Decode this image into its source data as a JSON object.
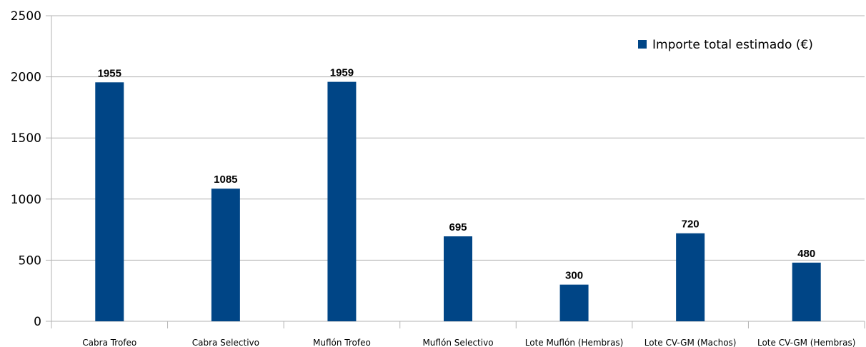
{
  "chart_data": {
    "type": "bar",
    "categories": [
      "Cabra Trofeo",
      "Cabra Selectivo",
      "Muflón Trofeo",
      "Muflón Selectivo",
      "Lote Muflón (Hembras)",
      "Lote CV-GM (Machos)",
      "Lote CV-GM (Hembras)"
    ],
    "series": [
      {
        "name": "Importe total estimado (€)",
        "values": [
          1955,
          1085,
          1959,
          695,
          300,
          720,
          480
        ],
        "color": "#004586"
      }
    ],
    "ylim": [
      0,
      2500
    ],
    "yticks": [
      0,
      500,
      1000,
      1500,
      2000,
      2500
    ],
    "grid": true,
    "legend_position": "top-right"
  }
}
